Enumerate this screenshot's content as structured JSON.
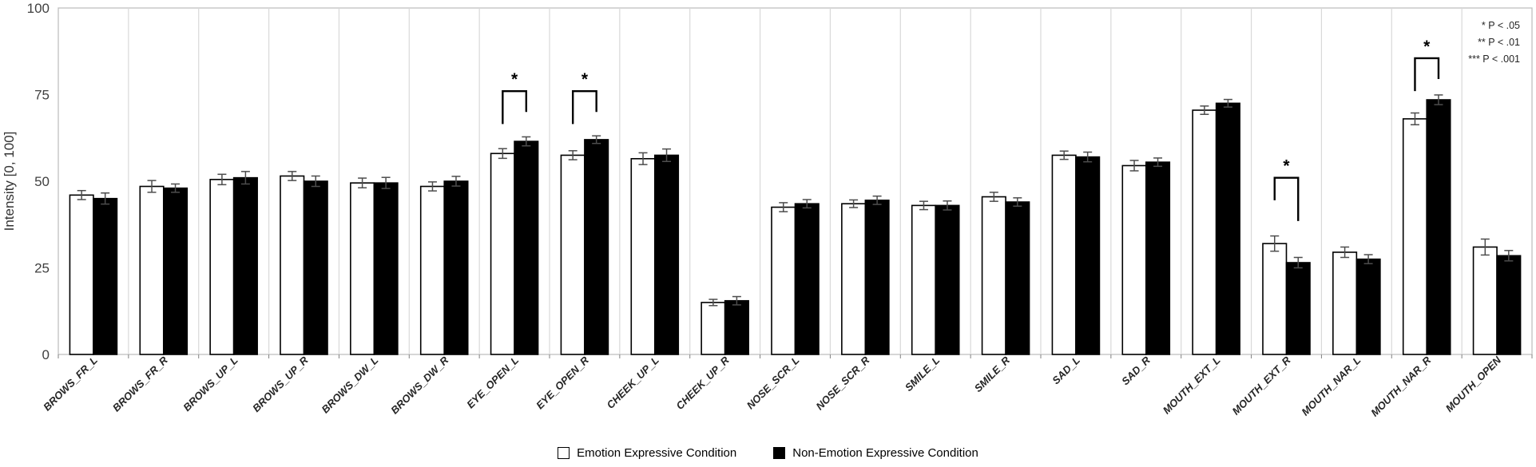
{
  "chart_data": {
    "type": "bar",
    "title": "",
    "ylabel": "Intensity [0, 100]",
    "xlabel": "",
    "ylim": [
      0,
      100
    ],
    "yticks": [
      0,
      25,
      50,
      75,
      100
    ],
    "grid": "vertical-category-separators-only",
    "legend_position": "bottom-center",
    "categories": [
      "BROWS_FR_L",
      "BROWS_FR_R",
      "BROWS_UP_L",
      "BROWS_UP_R",
      "BROWS_DW_L",
      "BROWS_DW_R",
      "EYE_OPEN_L",
      "EYE_OPEN_R",
      "CHEEK_UP_L",
      "CHEEK_UP_R",
      "NOSE_SCR_L",
      "NOSE_SCR_R",
      "SMILE_L",
      "SMILE_R",
      "SAD_L",
      "SAD_R",
      "MOUTH_EXT_L",
      "MOUTH_EXT_R",
      "MOUTH_NAR_L",
      "MOUTH_NAR_R",
      "MOUTH_OPEN"
    ],
    "series": [
      {
        "name": "Emotion Expressive Condition",
        "fill": "#ffffff",
        "stroke": "#000000",
        "values": [
          46,
          48.5,
          50.5,
          51.5,
          49.5,
          48.5,
          58,
          57.5,
          56.5,
          15,
          42.5,
          43.5,
          43,
          45.5,
          57.5,
          54.5,
          70.5,
          32,
          29.5,
          68,
          31
        ],
        "errors": [
          1.3,
          1.7,
          1.5,
          1.3,
          1.4,
          1.3,
          1.4,
          1.3,
          1.7,
          0.9,
          1.3,
          1.1,
          1.2,
          1.3,
          1.2,
          1.5,
          1.2,
          2.2,
          1.5,
          1.7,
          2.3
        ]
      },
      {
        "name": "Non-Emotion Expressive Condition",
        "fill": "#000000",
        "stroke": "#000000",
        "values": [
          45,
          48,
          51,
          50,
          49.5,
          50,
          61.5,
          62,
          57.5,
          15.5,
          43.5,
          44.5,
          43,
          44,
          57,
          55.5,
          72.5,
          26.5,
          27.5,
          73.5,
          28.5
        ],
        "errors": [
          1.6,
          1.2,
          1.8,
          1.5,
          1.6,
          1.4,
          1.3,
          1.1,
          1.8,
          1.2,
          1.2,
          1.2,
          1.3,
          1.2,
          1.4,
          1.2,
          1.1,
          1.5,
          1.3,
          1.4,
          1.5
        ]
      }
    ],
    "significance": [
      {
        "category": "EYE_OPEN_L",
        "label": "*",
        "top": 76,
        "left_bottom": 66.5,
        "right_bottom": 70
      },
      {
        "category": "EYE_OPEN_R",
        "label": "*",
        "top": 76,
        "left_bottom": 66.5,
        "right_bottom": 70
      },
      {
        "category": "MOUTH_EXT_R",
        "label": "*",
        "top": 51,
        "left_bottom": 44.5,
        "right_bottom": 38.5
      },
      {
        "category": "MOUTH_NAR_R",
        "label": "*",
        "top": 85.5,
        "left_bottom": 76,
        "right_bottom": 79.5
      }
    ]
  },
  "p_notes": [
    "* P < .05",
    "** P < .01",
    "*** P < .001"
  ],
  "colors": {
    "grid": "#d9d9d9",
    "plot_border": "#bfbfbf",
    "error_bar": "#4d4d4d",
    "tick_label": "#404040",
    "category_label": "#262626"
  }
}
